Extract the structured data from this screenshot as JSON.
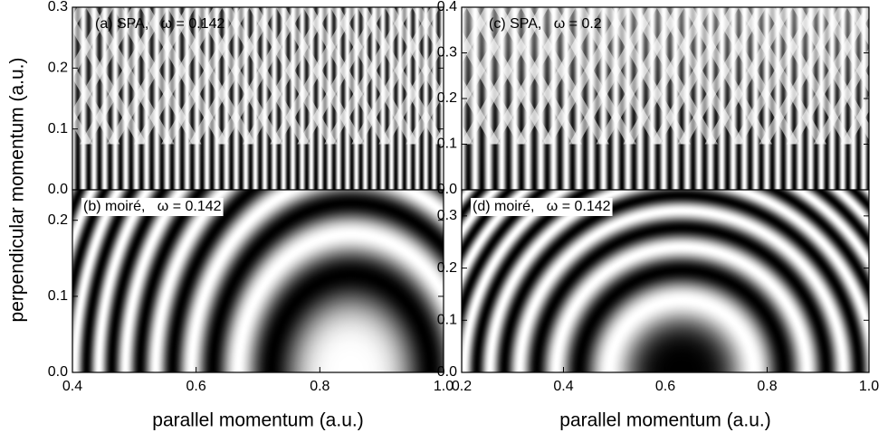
{
  "chart_data": [
    {
      "type": "heatmap",
      "pattern": "fringes",
      "title": "(a) SPA,   ω = 0.142",
      "ylabel": "perpendicular momentum (a.u.)",
      "xlim": [
        0.4,
        1.0
      ],
      "ylim": [
        0,
        0.3
      ],
      "yticks": [
        {
          "value": 0,
          "label": "0.0"
        },
        0.1,
        0.2,
        0.3
      ]
    },
    {
      "type": "heatmap",
      "pattern": "rings-light",
      "title": "(b) moiré,   ω = 0.142",
      "xlabel": "parallel momentum (a.u.)",
      "xlim": [
        0.4,
        1.0
      ],
      "ylim": [
        0,
        0.24
      ],
      "xticks": [
        0.4,
        0.6,
        0.8,
        {
          "value": 1,
          "label": "1.0"
        }
      ],
      "yticks": [
        {
          "value": 0,
          "label": "0.0"
        },
        0.1,
        0.2
      ]
    },
    {
      "type": "heatmap",
      "pattern": "fringes",
      "title": "(c) SPA,   ω = 0.2",
      "xlim": [
        0.2,
        1.0
      ],
      "ylim": [
        0,
        0.4
      ],
      "yticks": [
        {
          "value": 0,
          "label": "0.0"
        },
        0.1,
        0.2,
        0.3,
        0.4
      ]
    },
    {
      "type": "heatmap",
      "pattern": "rings-dark",
      "title": "(d) moiré,   ω = 0.142",
      "xlabel": "parallel momentum (a.u.)",
      "xlim": [
        0.2,
        1.0
      ],
      "ylim": [
        0,
        0.35
      ],
      "xticks": [
        0.2,
        0.4,
        0.6,
        0.8,
        {
          "value": 1,
          "label": "1.0"
        }
      ],
      "yticks": [
        {
          "value": 0,
          "label": "0.0"
        },
        0.1,
        0.2,
        0.3
      ]
    }
  ]
}
